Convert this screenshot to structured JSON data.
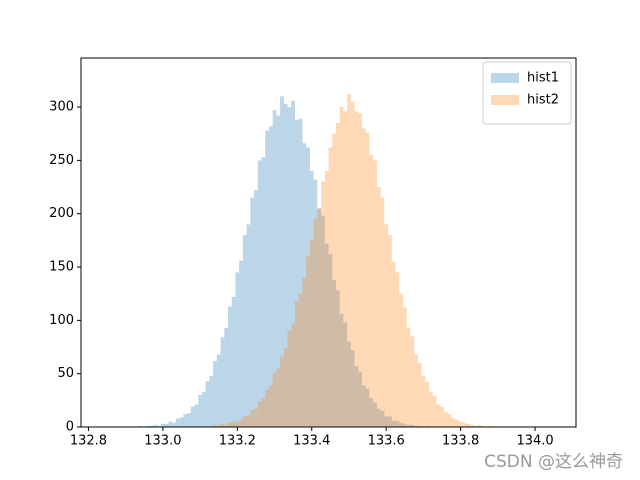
{
  "chart_data": {
    "type": "histogram",
    "xlim": [
      132.78,
      134.11
    ],
    "ylim": [
      0,
      346
    ],
    "xticks": [
      132.8,
      {
        "value": 133,
        "label": "133.0"
      },
      133.2,
      133.4,
      133.6,
      133.8,
      {
        "value": 134,
        "label": "134.0"
      }
    ],
    "yticks": [
      0,
      50,
      100,
      150,
      200,
      250,
      300
    ],
    "legend": "upper right",
    "alpha": 0.3,
    "watermark": "CSDN @这么神奇",
    "series": [
      {
        "name": "hist1",
        "color": "#1f77b4",
        "bins": [
          132.925,
          132.935,
          132.945,
          132.955,
          132.965,
          132.975,
          132.985,
          132.995,
          133.005,
          133.015,
          133.025,
          133.035,
          133.045,
          133.055,
          133.065,
          133.075,
          133.085,
          133.095,
          133.105,
          133.115,
          133.125,
          133.135,
          133.145,
          133.155,
          133.165,
          133.175,
          133.185,
          133.195,
          133.205,
          133.215,
          133.225,
          133.235,
          133.245,
          133.255,
          133.265,
          133.275,
          133.285,
          133.295,
          133.305,
          133.315,
          133.325,
          133.335,
          133.345,
          133.355,
          133.365,
          133.375,
          133.385,
          133.395,
          133.405,
          133.415,
          133.425,
          133.435,
          133.445,
          133.455,
          133.465,
          133.475,
          133.485,
          133.495,
          133.505,
          133.515,
          133.525,
          133.535,
          133.545,
          133.555,
          133.565,
          133.575,
          133.585,
          133.595,
          133.605,
          133.615,
          133.625,
          133.635,
          133.645,
          133.655,
          133.665,
          133.675,
          133.685,
          133.695,
          133.705,
          133.715,
          133.725,
          133.735
        ],
        "values": [
          0,
          1,
          0,
          1,
          1,
          2,
          1,
          3,
          3,
          5,
          4,
          8,
          9,
          12,
          13,
          19,
          21,
          30,
          33,
          43,
          48,
          62,
          68,
          84,
          93,
          113,
          122,
          145,
          156,
          180,
          190,
          215,
          222,
          250,
          253,
          278,
          282,
          297,
          292,
          310,
          303,
          300,
          306,
          288,
          289,
          266,
          262,
          240,
          232,
          205,
          198,
          172,
          162,
          138,
          128,
          106,
          98,
          80,
          72,
          57,
          52,
          39,
          36,
          27,
          23,
          17,
          15,
          10,
          10,
          6,
          6,
          4,
          3,
          2,
          2,
          1,
          1,
          0,
          1,
          0,
          0
        ]
      },
      {
        "name": "hist2",
        "color": "#ff7f0e",
        "bins": [
          133.095,
          133.105,
          133.115,
          133.125,
          133.135,
          133.145,
          133.155,
          133.165,
          133.175,
          133.185,
          133.195,
          133.205,
          133.215,
          133.225,
          133.235,
          133.245,
          133.255,
          133.265,
          133.275,
          133.285,
          133.295,
          133.305,
          133.315,
          133.325,
          133.335,
          133.345,
          133.355,
          133.365,
          133.375,
          133.385,
          133.395,
          133.405,
          133.415,
          133.425,
          133.435,
          133.445,
          133.455,
          133.465,
          133.475,
          133.485,
          133.495,
          133.505,
          133.515,
          133.525,
          133.535,
          133.545,
          133.555,
          133.565,
          133.575,
          133.585,
          133.595,
          133.605,
          133.615,
          133.625,
          133.635,
          133.645,
          133.655,
          133.665,
          133.675,
          133.685,
          133.695,
          133.705,
          133.715,
          133.725,
          133.735,
          133.745,
          133.755,
          133.765,
          133.775,
          133.785,
          133.795,
          133.805,
          133.815,
          133.825,
          133.835,
          133.845,
          133.855,
          133.865,
          133.875,
          133.885,
          133.895,
          133.905
        ],
        "values": [
          0,
          0,
          1,
          1,
          2,
          1,
          3,
          2,
          4,
          6,
          5,
          7,
          10,
          11,
          16,
          17,
          24,
          27,
          35,
          39,
          51,
          55,
          66,
          74,
          90,
          97,
          118,
          125,
          140,
          160,
          175,
          195,
          205,
          230,
          240,
          262,
          275,
          285,
          300,
          296,
          312,
          305,
          296,
          294,
          280,
          276,
          255,
          250,
          225,
          215,
          190,
          180,
          155,
          145,
          125,
          112,
          93,
          85,
          68,
          60,
          48,
          42,
          33,
          29,
          21,
          19,
          14,
          12,
          8,
          7,
          5,
          4,
          3,
          2,
          1,
          2,
          1,
          0,
          1,
          0,
          0
        ]
      }
    ]
  }
}
